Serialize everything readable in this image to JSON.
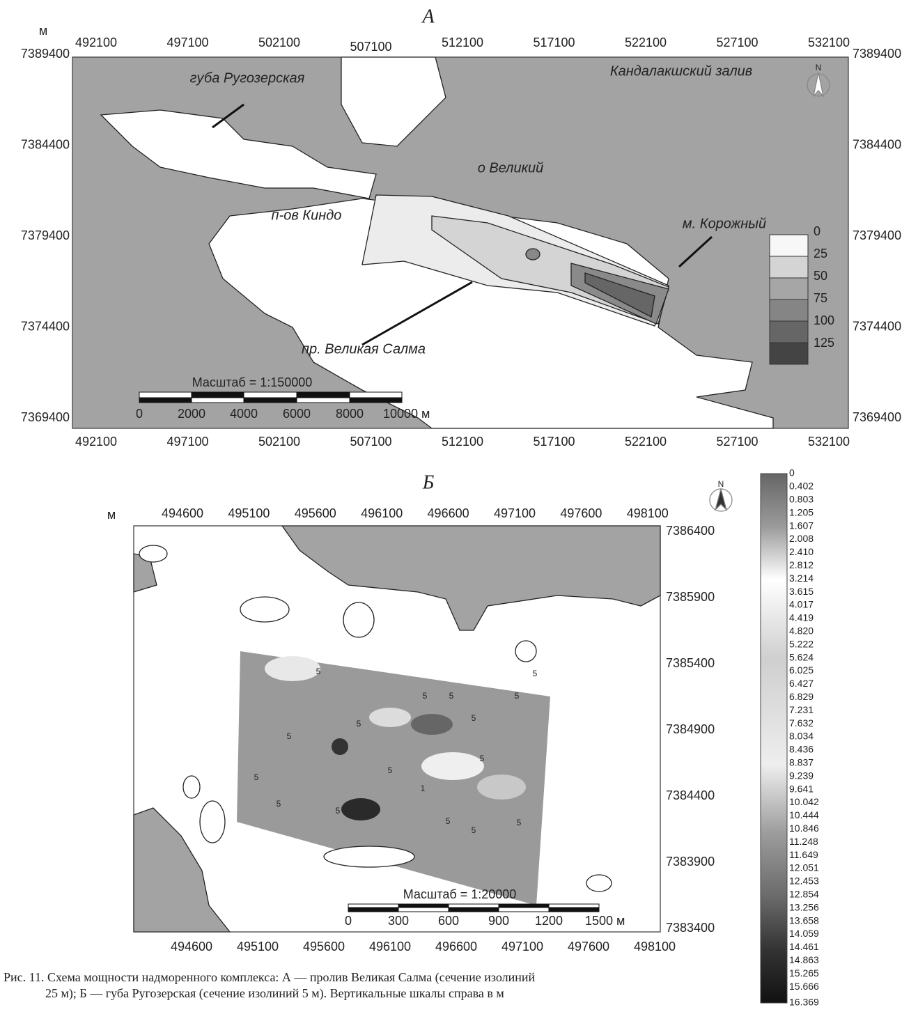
{
  "panel_a": {
    "label": "А",
    "unit": "м",
    "x_ticks": [
      "492100",
      "497100",
      "502100",
      "507100",
      "512100",
      "517100",
      "522100",
      "527100",
      "532100"
    ],
    "y_ticks": [
      "7389400",
      "7384400",
      "7379400",
      "7374400",
      "7369400"
    ],
    "places": [
      "губа Ругозерская",
      "Кандалакшский залив",
      "о Великий",
      "п-ов Киндо",
      "м. Корожный",
      "пр. Великая Салма"
    ],
    "north": "N",
    "legend": [
      "0",
      "25",
      "50",
      "75",
      "100",
      "125"
    ],
    "scale_title": "Масштаб = 1:150000",
    "scale_labels": [
      "0",
      "2000",
      "4000",
      "6000",
      "8000",
      "10000 м"
    ]
  },
  "panel_b": {
    "label": "Б",
    "unit": "м",
    "x_ticks": [
      "494600",
      "495100",
      "495600",
      "496100",
      "496600",
      "497100",
      "497600",
      "498100"
    ],
    "y_ticks": [
      "7386400",
      "7385900",
      "7385400",
      "7384900",
      "7384400",
      "7383900",
      "7383400"
    ],
    "north": "N",
    "contour_labels": [
      "5",
      "5",
      "5",
      "5",
      "5",
      "5",
      "5",
      "5",
      "5",
      "5",
      "5",
      "5",
      "1",
      "5",
      "5",
      "5",
      "5"
    ],
    "scale_title": "Масштаб = 1:20000",
    "scale_labels": [
      "0",
      "300",
      "600",
      "900",
      "1200",
      "1500 м"
    ],
    "colorbar": [
      "0",
      "0.402",
      "0.803",
      "1.205",
      "1.607",
      "2.008",
      "2.410",
      "2.812",
      "3.214",
      "3.615",
      "4.017",
      "4.419",
      "4.820",
      "5.222",
      "5.624",
      "6.025",
      "6.427",
      "6.829",
      "7.231",
      "7.632",
      "8.034",
      "8.436",
      "8.837",
      "9.239",
      "9.641",
      "10.042",
      "10.444",
      "10.846",
      "11.248",
      "11.649",
      "12.051",
      "12.453",
      "12.854",
      "13.256",
      "13.658",
      "14.059",
      "14.461",
      "14.863",
      "15.265",
      "15.666",
      "16.369"
    ]
  },
  "caption": [
    "Рис. 11. Схема мощности надморенного комплекса: А — пролив Великая Салма (сечение изолиний",
    "25 м); Б — губа Ругозерская (сечение изолиний 5 м). Вертикальные шкалы справа в м"
  ]
}
